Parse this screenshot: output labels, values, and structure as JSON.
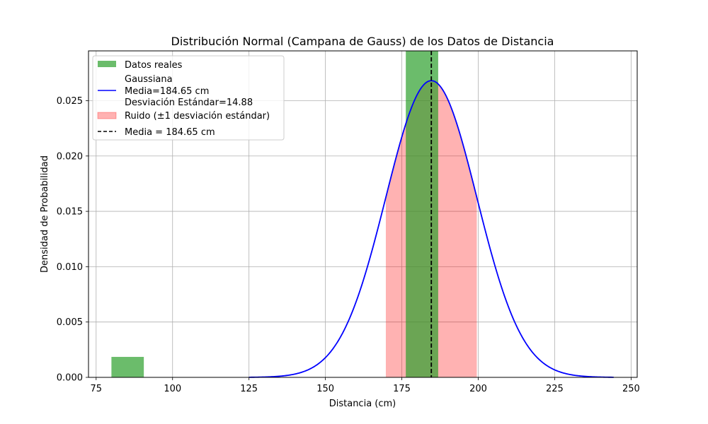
{
  "chart_data": {
    "type": "bar",
    "title": "Distribución Normal (Campana de Gauss) de los Datos de Distancia",
    "xlabel": "Distancia (cm)",
    "ylabel": "Densidad de Probabilidad",
    "xlim": [
      72.5,
      252
    ],
    "ylim": [
      0,
      0.0295
    ],
    "xticks": [
      75,
      100,
      125,
      150,
      175,
      200,
      225,
      250
    ],
    "yticks": [
      0.0,
      0.005,
      0.01,
      0.015,
      0.02,
      0.025
    ],
    "ytick_labels": [
      "0.000",
      "0.005",
      "0.010",
      "0.015",
      "0.020",
      "0.025"
    ],
    "grid": true,
    "legend_position": "top-left",
    "histogram": {
      "name": "Datos reales",
      "color": "#2ca02c",
      "bins": [
        {
          "start": 80,
          "end": 90.6,
          "density": 0.00185
        },
        {
          "start": 176.3,
          "end": 186.9,
          "density": 0.0295
        }
      ]
    },
    "gaussian": {
      "legend_lines": [
        "Gaussiana",
        "Media=184.65 cm",
        "Desviación Estándar=14.88"
      ],
      "mean": 184.65,
      "std": 14.88,
      "x_range": [
        125,
        244.3
      ],
      "color": "#0000ff"
    },
    "noise_band": {
      "name": "Ruido (±1 desviación estándar)",
      "from": 169.77,
      "to": 199.53,
      "color": "#ff0000"
    },
    "mean_line": {
      "name": "Media = 184.65 cm",
      "x": 184.65,
      "color": "#000000"
    }
  }
}
